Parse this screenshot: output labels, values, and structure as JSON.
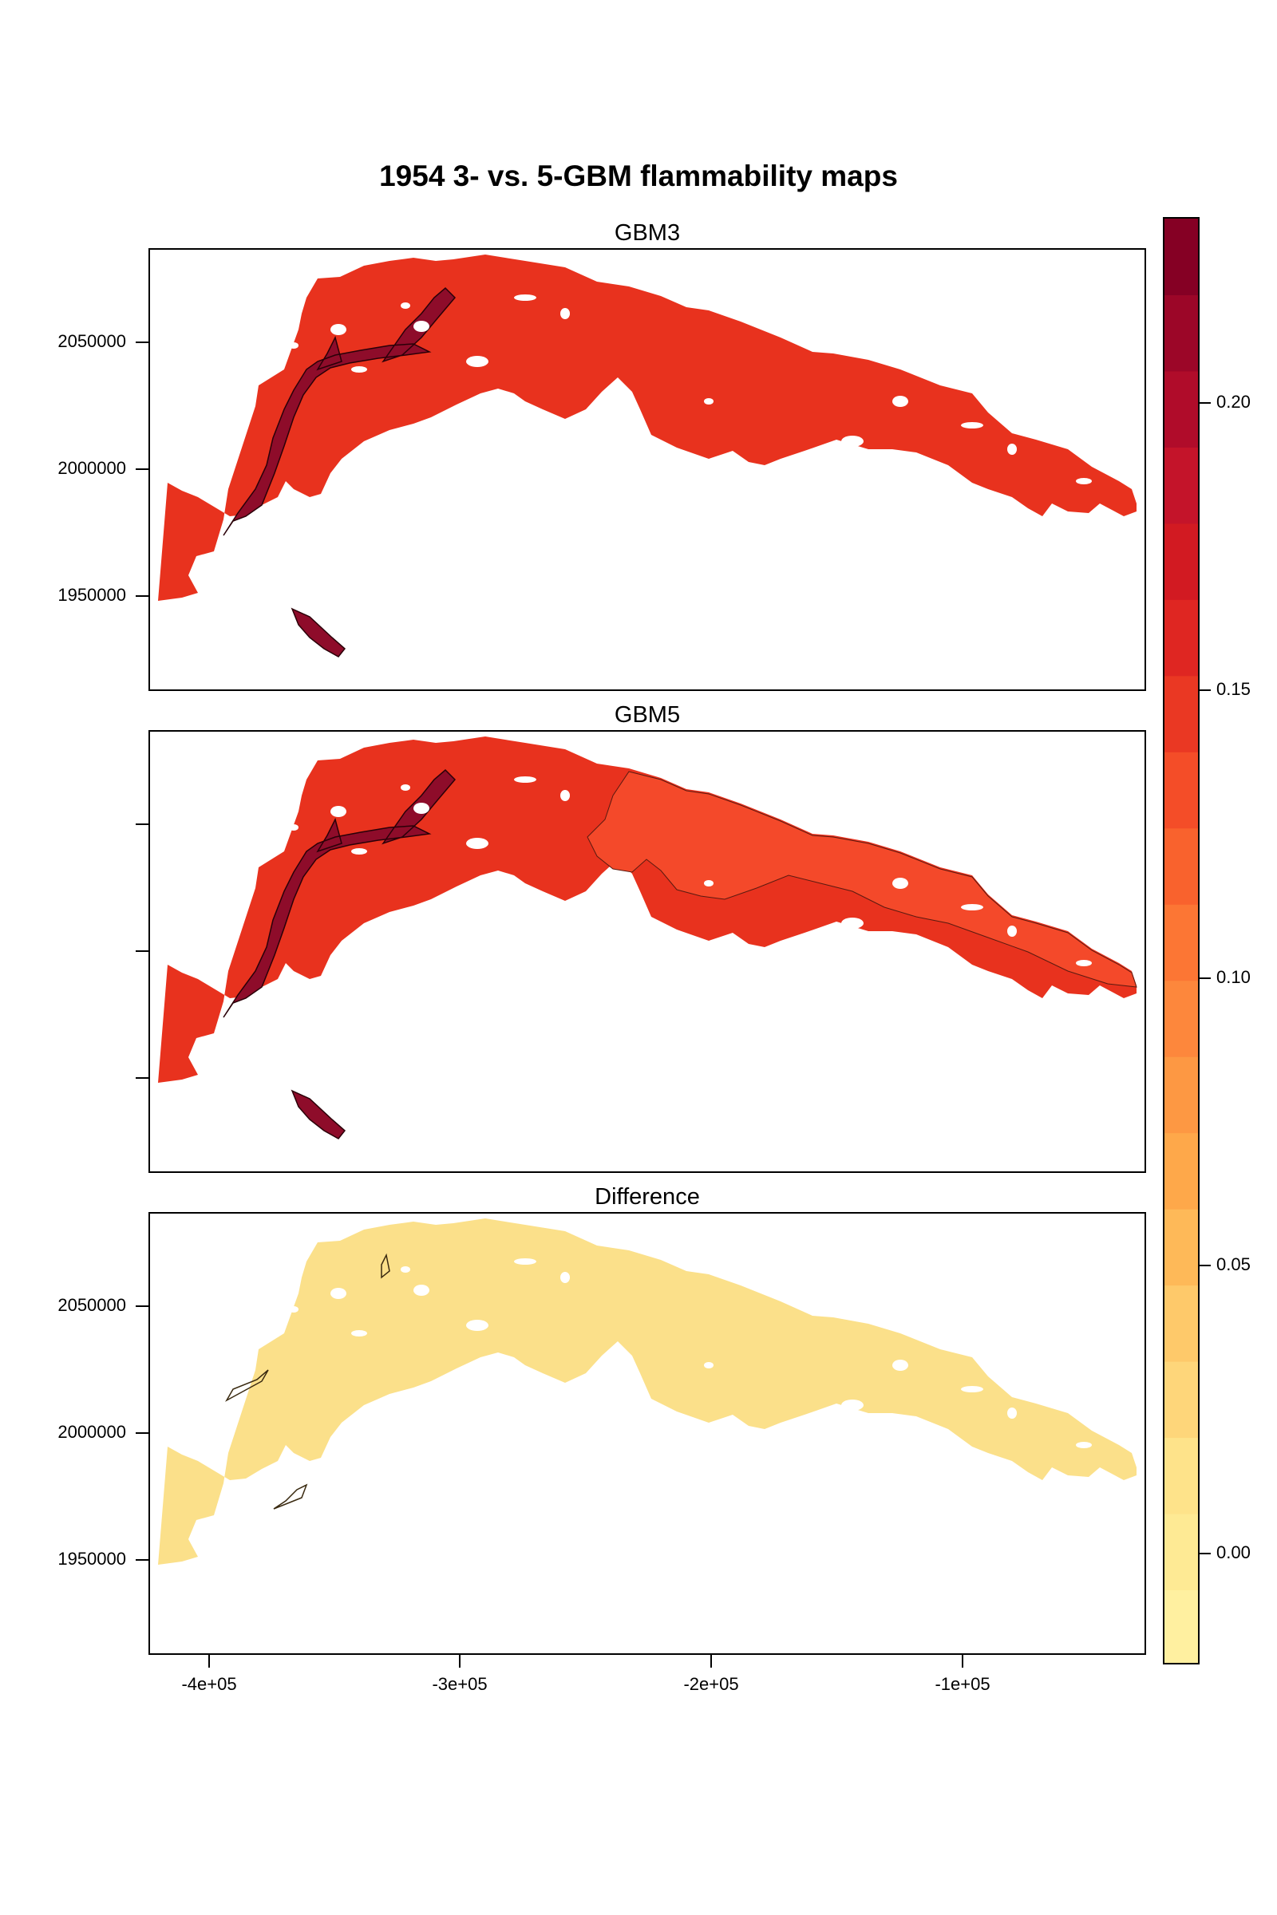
{
  "title": "1954 3- vs. 5-GBM flammability maps",
  "panels": [
    {
      "title": "GBM3",
      "main_color": "#e8321e",
      "zone_color": "#c4142a",
      "dark_color": "#8e0c2a"
    },
    {
      "title": "GBM5",
      "main_color": "#e8321e",
      "zone_color": "#f4492a",
      "dark_color": "#8e0c2a"
    },
    {
      "title": "Difference",
      "main_color": "#fbe08a",
      "zone_color": "#fbe08a",
      "dark_color": "#fbe08a"
    }
  ],
  "y_axis": {
    "ticks": [
      "2050000",
      "2000000",
      "1950000"
    ],
    "panel_labels_shown": [
      true,
      false,
      true
    ]
  },
  "x_axis": {
    "ticks": [
      "-4e+05",
      "-3e+05",
      "-2e+05",
      "-1e+05"
    ]
  },
  "legend": {
    "ticks": [
      "0.20",
      "0.15",
      "0.10",
      "0.05",
      "0.00"
    ],
    "range": [
      -0.02,
      0.235
    ],
    "colors": [
      "#fff0a0",
      "#feea94",
      "#fee38a",
      "#fed67a",
      "#fec96a",
      "#feb958",
      "#fea84a",
      "#fd9843",
      "#fd873c",
      "#fc7634",
      "#f9622d",
      "#f44d28",
      "#ea3823",
      "#df2622",
      "#d21a22",
      "#c4142a",
      "#b00c2a",
      "#9c0628",
      "#850024"
    ]
  }
}
